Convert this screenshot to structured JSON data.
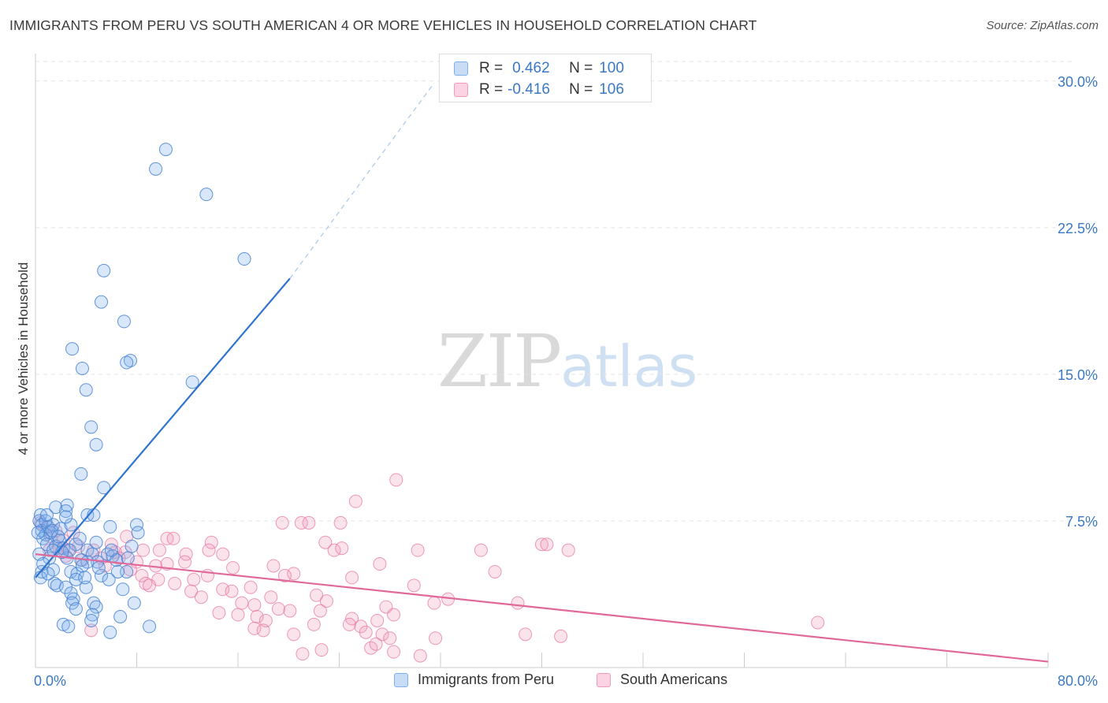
{
  "title": "IMMIGRANTS FROM PERU VS SOUTH AMERICAN 4 OR MORE VEHICLES IN HOUSEHOLD CORRELATION CHART",
  "source": "Source: ZipAtlas.com",
  "watermark": {
    "zip": "ZIP",
    "atlas": "atlas"
  },
  "colors": {
    "blue": "#7fb0ea",
    "blue_line": "#2f74cf",
    "pink": "#f19ab9",
    "pink_line": "#e0699a",
    "axis_text": "#3a78c4"
  },
  "legend_top": {
    "rows": [
      {
        "r_label": "R =",
        "r_value": "0.462",
        "n_label": "N =",
        "n_value": "100"
      },
      {
        "r_label": "R =",
        "r_value": "-0.416",
        "n_label": "N =",
        "n_value": "106"
      }
    ]
  },
  "legend_bottom": {
    "series1": "Immigrants from Peru",
    "series2": "South Americans"
  },
  "chart_data": {
    "type": "scatter",
    "title": "IMMIGRANTS FROM PERU VS SOUTH AMERICAN 4 OR MORE VEHICLES IN HOUSEHOLD CORRELATION CHART",
    "xlabel": "",
    "ylabel": "4 or more Vehicles in Household",
    "xlim": [
      0,
      80
    ],
    "ylim": [
      0,
      31
    ],
    "x_tick_labels": [
      "0.0%",
      "80.0%"
    ],
    "y_ticks": [
      7.5,
      15.0,
      22.5,
      30.0
    ],
    "y_tick_labels": [
      "7.5%",
      "15.0%",
      "22.5%",
      "30.0%"
    ],
    "grid": true,
    "legend_position": "top-center",
    "series": [
      {
        "name": "Immigrants from Peru",
        "color": "#7fb0ea",
        "trend": {
          "x0": 0,
          "y0": 4.6,
          "x1": 20.1,
          "y1": 19.9,
          "dash_to_x": 31.5,
          "dash_to_y": 29.9
        },
        "points": [
          [
            10.3,
            26.5
          ],
          [
            9.5,
            25.5
          ],
          [
            13.5,
            24.2
          ],
          [
            16.5,
            20.9
          ],
          [
            5.4,
            20.3
          ],
          [
            5.2,
            18.7
          ],
          [
            7.0,
            17.7
          ],
          [
            2.9,
            16.3
          ],
          [
            7.5,
            15.7
          ],
          [
            7.2,
            15.6
          ],
          [
            3.7,
            15.3
          ],
          [
            12.4,
            14.6
          ],
          [
            4.0,
            14.2
          ],
          [
            4.4,
            12.3
          ],
          [
            4.8,
            11.4
          ],
          [
            3.6,
            9.9
          ],
          [
            5.4,
            9.2
          ],
          [
            0.4,
            7.8
          ],
          [
            1.6,
            8.2
          ],
          [
            2.5,
            8.3
          ],
          [
            2.4,
            8.0
          ],
          [
            4.1,
            7.8
          ],
          [
            4.6,
            7.8
          ],
          [
            0.3,
            7.5
          ],
          [
            0.5,
            7.3
          ],
          [
            1.0,
            7.2
          ],
          [
            1.4,
            7.3
          ],
          [
            2.0,
            7.1
          ],
          [
            2.8,
            7.3
          ],
          [
            5.9,
            7.2
          ],
          [
            8.0,
            7.3
          ],
          [
            8.1,
            6.9
          ],
          [
            0.5,
            7.0
          ],
          [
            0.8,
            6.8
          ],
          [
            1.2,
            6.9
          ],
          [
            0.6,
            6.6
          ],
          [
            1.9,
            6.5
          ],
          [
            3.2,
            6.3
          ],
          [
            0.9,
            6.3
          ],
          [
            1.6,
            6.2
          ],
          [
            2.2,
            6.1
          ],
          [
            2.7,
            6.0
          ],
          [
            4.1,
            6.0
          ],
          [
            4.5,
            5.8
          ],
          [
            5.7,
            5.8
          ],
          [
            6.1,
            5.7
          ],
          [
            7.6,
            6.2
          ],
          [
            1.1,
            5.6
          ],
          [
            2.5,
            5.6
          ],
          [
            3.6,
            5.5
          ],
          [
            4.9,
            5.4
          ],
          [
            6.4,
            5.5
          ],
          [
            4.1,
            5.4
          ],
          [
            0.5,
            4.9
          ],
          [
            1.4,
            5.0
          ],
          [
            2.8,
            4.9
          ],
          [
            3.3,
            4.8
          ],
          [
            5.2,
            4.7
          ],
          [
            7.2,
            4.9
          ],
          [
            0.4,
            4.6
          ],
          [
            1.5,
            4.3
          ],
          [
            3.2,
            4.5
          ],
          [
            5.8,
            4.5
          ],
          [
            1.7,
            4.2
          ],
          [
            2.4,
            4.1
          ],
          [
            4.0,
            4.1
          ],
          [
            6.9,
            4.0
          ],
          [
            2.8,
            3.8
          ],
          [
            3.0,
            3.5
          ],
          [
            2.9,
            3.3
          ],
          [
            4.6,
            3.3
          ],
          [
            7.8,
            3.3
          ],
          [
            4.8,
            3.1
          ],
          [
            3.2,
            3.0
          ],
          [
            4.5,
            2.7
          ],
          [
            6.7,
            2.6
          ],
          [
            4.4,
            2.4
          ],
          [
            2.2,
            2.2
          ],
          [
            2.6,
            2.1
          ],
          [
            5.9,
            1.8
          ],
          [
            9.0,
            2.1
          ],
          [
            0.3,
            5.8
          ],
          [
            0.6,
            5.3
          ],
          [
            1.0,
            4.8
          ],
          [
            0.8,
            7.5
          ],
          [
            1.3,
            7.0
          ],
          [
            1.8,
            6.7
          ],
          [
            2.1,
            5.9
          ],
          [
            3.7,
            5.2
          ],
          [
            5.0,
            5.1
          ],
          [
            6.5,
            4.9
          ],
          [
            0.2,
            6.9
          ],
          [
            0.9,
            7.8
          ],
          [
            1.4,
            6.0
          ],
          [
            2.4,
            7.7
          ],
          [
            3.5,
            6.6
          ],
          [
            4.8,
            6.4
          ],
          [
            6.0,
            6.0
          ],
          [
            7.3,
            5.6
          ],
          [
            3.9,
            4.6
          ]
        ]
      },
      {
        "name": "South Americans",
        "color": "#f19ab9",
        "trend": {
          "x0": 0,
          "y0": 5.8,
          "x1": 80,
          "y1": 0.3
        },
        "points": [
          [
            28.5,
            9.6
          ],
          [
            25.3,
            8.5
          ],
          [
            19.5,
            7.4
          ],
          [
            21.0,
            7.4
          ],
          [
            21.6,
            7.4
          ],
          [
            24.1,
            7.4
          ],
          [
            0.4,
            7.4
          ],
          [
            0.9,
            7.2
          ],
          [
            1.6,
            7.0
          ],
          [
            1.2,
            6.7
          ],
          [
            2.2,
            6.5
          ],
          [
            3.0,
            6.9
          ],
          [
            7.2,
            6.7
          ],
          [
            10.4,
            6.6
          ],
          [
            10.9,
            6.6
          ],
          [
            13.9,
            6.4
          ],
          [
            22.9,
            6.4
          ],
          [
            23.6,
            6.0
          ],
          [
            24.2,
            6.1
          ],
          [
            30.2,
            6.0
          ],
          [
            35.2,
            6.0
          ],
          [
            40.0,
            6.3
          ],
          [
            40.4,
            6.3
          ],
          [
            42.1,
            6.0
          ],
          [
            1.1,
            6.0
          ],
          [
            1.9,
            6.1
          ],
          [
            2.6,
            6.0
          ],
          [
            3.4,
            6.2
          ],
          [
            4.6,
            6.0
          ],
          [
            6.3,
            5.9
          ],
          [
            7.1,
            5.9
          ],
          [
            8.5,
            6.0
          ],
          [
            9.8,
            6.0
          ],
          [
            11.9,
            5.8
          ],
          [
            13.7,
            6.0
          ],
          [
            14.8,
            5.8
          ],
          [
            2.4,
            5.7
          ],
          [
            3.7,
            5.5
          ],
          [
            5.2,
            5.6
          ],
          [
            6.6,
            5.6
          ],
          [
            8.0,
            5.4
          ],
          [
            9.5,
            5.2
          ],
          [
            10.4,
            5.3
          ],
          [
            11.8,
            5.4
          ],
          [
            15.6,
            5.1
          ],
          [
            18.8,
            5.2
          ],
          [
            27.2,
            5.3
          ],
          [
            36.3,
            4.9
          ],
          [
            20.4,
            4.8
          ],
          [
            19.7,
            4.7
          ],
          [
            25.0,
            4.6
          ],
          [
            8.4,
            4.7
          ],
          [
            9.7,
            4.5
          ],
          [
            11.0,
            4.3
          ],
          [
            12.5,
            4.5
          ],
          [
            13.6,
            4.7
          ],
          [
            8.7,
            4.3
          ],
          [
            14.8,
            4.0
          ],
          [
            15.5,
            3.9
          ],
          [
            17.0,
            4.1
          ],
          [
            22.2,
            3.7
          ],
          [
            18.6,
            3.6
          ],
          [
            13.1,
            3.6
          ],
          [
            29.9,
            4.2
          ],
          [
            32.6,
            3.5
          ],
          [
            31.5,
            3.3
          ],
          [
            38.1,
            3.3
          ],
          [
            17.3,
            3.2
          ],
          [
            20.1,
            2.9
          ],
          [
            22.5,
            2.9
          ],
          [
            23.0,
            3.4
          ],
          [
            27.7,
            3.1
          ],
          [
            28.3,
            2.7
          ],
          [
            14.5,
            2.8
          ],
          [
            16.0,
            2.7
          ],
          [
            17.5,
            2.6
          ],
          [
            18.2,
            2.4
          ],
          [
            25.0,
            2.5
          ],
          [
            27.0,
            2.4
          ],
          [
            61.8,
            2.3
          ],
          [
            17.3,
            2.0
          ],
          [
            18.0,
            1.9
          ],
          [
            22.0,
            2.2
          ],
          [
            25.7,
            2.1
          ],
          [
            26.1,
            1.8
          ],
          [
            27.4,
            1.7
          ],
          [
            20.4,
            1.7
          ],
          [
            28.0,
            1.5
          ],
          [
            31.6,
            1.5
          ],
          [
            38.7,
            1.7
          ],
          [
            41.5,
            1.6
          ],
          [
            4.4,
            1.9
          ],
          [
            26.5,
            1.0
          ],
          [
            22.6,
            0.9
          ],
          [
            21.1,
            0.7
          ],
          [
            28.3,
            0.8
          ],
          [
            30.4,
            0.6
          ],
          [
            26.9,
            1.2
          ],
          [
            7.5,
            5.0
          ],
          [
            9.0,
            4.2
          ],
          [
            12.3,
            3.9
          ],
          [
            16.3,
            3.3
          ],
          [
            19.2,
            3.0
          ],
          [
            24.8,
            2.2
          ],
          [
            6.0,
            6.3
          ],
          [
            5.5,
            5.2
          ]
        ]
      }
    ]
  }
}
